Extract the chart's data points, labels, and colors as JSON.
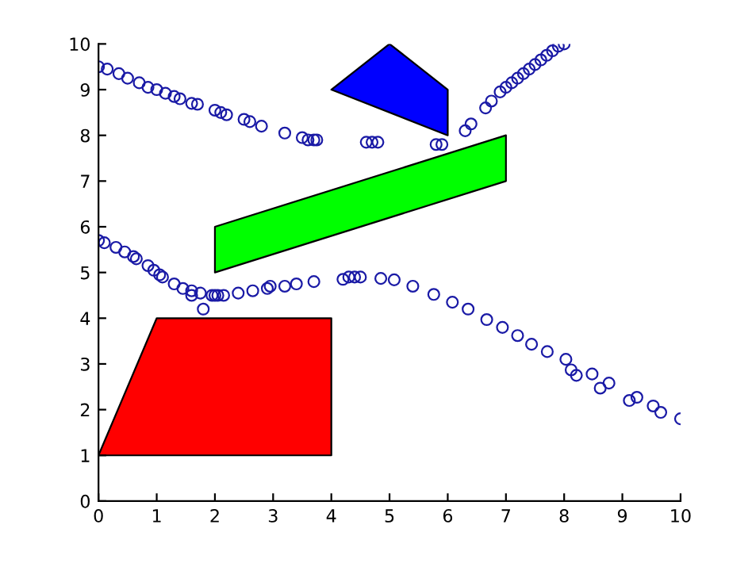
{
  "chart_data": {
    "type": "scatter",
    "marker": "circle",
    "grid": false,
    "xlim": [
      0,
      10
    ],
    "ylim": [
      0,
      10
    ],
    "xticks": [
      0,
      1,
      2,
      3,
      4,
      5,
      6,
      7,
      8,
      9,
      10
    ],
    "yticks": [
      0,
      1,
      2,
      3,
      4,
      5,
      6,
      7,
      8,
      9,
      10
    ],
    "series": [
      {
        "type": "area",
        "marker": "none",
        "color": "#ff0000",
        "x": [
          0,
          1,
          4,
          4,
          0
        ],
        "values": [
          1,
          4,
          4,
          1,
          1
        ]
      },
      {
        "type": "area",
        "marker": "none",
        "color": "#00ff00",
        "x": [
          2,
          2,
          7,
          7,
          2
        ],
        "values": [
          5,
          6,
          8,
          7,
          5
        ]
      },
      {
        "type": "area",
        "marker": "none",
        "color": "#0000ff",
        "x": [
          4,
          5,
          6,
          6,
          4
        ],
        "values": [
          9,
          10,
          9,
          8,
          9
        ]
      },
      {
        "color": "#1a1aa6",
        "x": [
          0,
          0.15,
          0.35,
          0.5,
          0.7,
          0.85,
          1,
          1.15,
          1.3,
          1.4,
          1.6,
          1.7,
          2,
          2.1,
          2.2,
          2.5,
          2.6,
          2.8,
          3.2,
          3.5,
          3.6,
          3.7,
          3.75,
          4.6,
          4.7,
          4.8,
          5.8,
          5.9,
          6.3,
          6.4,
          6.65,
          6.75,
          6.9,
          7,
          7.1,
          7.2,
          7.3,
          7.4,
          7.5,
          7.6,
          7.7,
          7.8,
          7.9,
          8
        ],
        "values": [
          9.5,
          9.45,
          9.35,
          9.25,
          9.15,
          9.05,
          9,
          8.92,
          8.85,
          8.8,
          8.7,
          8.68,
          8.55,
          8.5,
          8.45,
          8.35,
          8.3,
          8.2,
          8.05,
          7.95,
          7.9,
          7.9,
          7.9,
          7.85,
          7.85,
          7.85,
          7.8,
          7.8,
          8.1,
          8.25,
          8.6,
          8.75,
          8.95,
          9.05,
          9.15,
          9.25,
          9.35,
          9.45,
          9.55,
          9.65,
          9.75,
          9.85,
          9.95,
          10
        ]
      },
      {
        "color": "#1a1aa6",
        "x": [
          0,
          0.1,
          0.3,
          0.45,
          0.6,
          0.65,
          0.85,
          0.95,
          1.05,
          1.1,
          1.3,
          1.45,
          1.6,
          1.6,
          1.75,
          1.8,
          1.95,
          2,
          2.05,
          2.15,
          2.4,
          2.65,
          2.9,
          2.95,
          3.2,
          3.4,
          3.7,
          4.2,
          4.3,
          4.4,
          4.5,
          4.85,
          5.08,
          5.4,
          5.76,
          6.08,
          6.35,
          6.67,
          6.94,
          7.2,
          7.44,
          7.71,
          8.03,
          8.12,
          8.21,
          8.48,
          8.62,
          8.77,
          9.12,
          9.25,
          9.53,
          9.66,
          10
        ],
        "values": [
          5.7,
          5.65,
          5.55,
          5.45,
          5.35,
          5.3,
          5.15,
          5.05,
          4.95,
          4.9,
          4.75,
          4.65,
          4.5,
          4.6,
          4.55,
          4.2,
          4.5,
          4.5,
          4.5,
          4.5,
          4.55,
          4.6,
          4.65,
          4.7,
          4.7,
          4.75,
          4.8,
          4.85,
          4.9,
          4.9,
          4.9,
          4.87,
          4.84,
          4.7,
          4.52,
          4.35,
          4.2,
          3.97,
          3.8,
          3.62,
          3.43,
          3.27,
          3.1,
          2.87,
          2.75,
          2.78,
          2.47,
          2.58,
          2.2,
          2.27,
          2.08,
          1.94,
          1.8
        ]
      }
    ]
  }
}
